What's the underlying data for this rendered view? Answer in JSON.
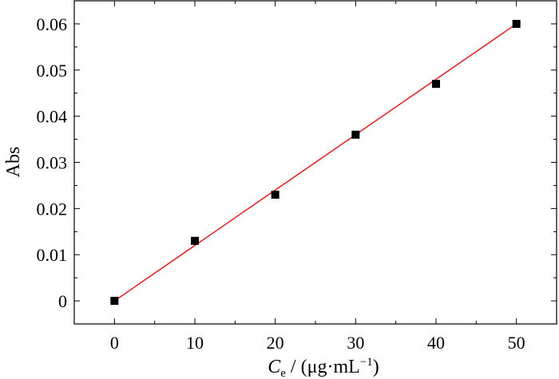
{
  "chart_data": {
    "type": "scatter",
    "xlabel": {
      "symbol": "C",
      "subscript": "e",
      "rest": " / (μg·mL",
      "sup": "−1",
      "close": ")"
    },
    "ylabel": "Abs",
    "xlim": [
      -5,
      55
    ],
    "ylim": [
      -0.005,
      0.065
    ],
    "xticks": [
      0,
      10,
      20,
      30,
      40,
      50
    ],
    "xtick_labels": [
      "0",
      "10",
      "20",
      "30",
      "40",
      "50"
    ],
    "yticks": [
      0,
      0.01,
      0.02,
      0.03,
      0.04,
      0.05,
      0.06
    ],
    "ytick_labels": [
      "0",
      "0.01",
      "0.02",
      "0.03",
      "0.04",
      "0.05",
      "0.06"
    ],
    "series": [
      {
        "points": [
          [
            0,
            0.0
          ],
          [
            10,
            0.013
          ],
          [
            20,
            0.023
          ],
          [
            30,
            0.036
          ],
          [
            40,
            0.047
          ],
          [
            50,
            0.06
          ]
        ],
        "marker": "square",
        "color": "#000000"
      }
    ],
    "fit_line": {
      "from": [
        0,
        0.0
      ],
      "to": [
        50,
        0.06
      ],
      "color": "#e02020"
    },
    "grid": false
  }
}
